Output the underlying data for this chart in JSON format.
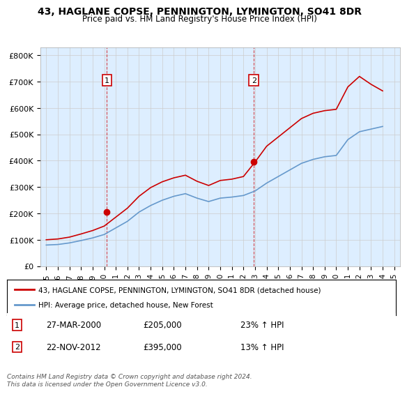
{
  "title": "43, HAGLANE COPSE, PENNINGTON, LYMINGTON, SO41 8DR",
  "subtitle": "Price paid vs. HM Land Registry's House Price Index (HPI)",
  "ylabel": "",
  "bg_color": "#ffffff",
  "chart_bg_color": "#ddeeff",
  "grid_color": "#ffffff",
  "red_color": "#cc0000",
  "blue_color": "#6699cc",
  "sale1_year": 2000.23,
  "sale1_price": 205000,
  "sale1_label": "27-MAR-2000",
  "sale1_pct": "23%",
  "sale2_year": 2012.9,
  "sale2_price": 395000,
  "sale2_label": "22-NOV-2012",
  "sale2_pct": "13%",
  "legend_line1": "43, HAGLANE COPSE, PENNINGTON, LYMINGTON, SO41 8DR (detached house)",
  "legend_line2": "HPI: Average price, detached house, New Forest",
  "footnote": "Contains HM Land Registry data © Crown copyright and database right 2024.\nThis data is licensed under the Open Government Licence v3.0.",
  "xlim_left": 1994.5,
  "xlim_right": 2025.5,
  "ylim_bottom": 0,
  "ylim_top": 830000,
  "yticks": [
    0,
    100000,
    200000,
    300000,
    400000,
    500000,
    600000,
    700000,
    800000
  ],
  "ytick_labels": [
    "£0",
    "£100K",
    "£200K",
    "£300K",
    "£400K",
    "£500K",
    "£600K",
    "£700K",
    "£800K"
  ],
  "xticks": [
    1995,
    1996,
    1997,
    1998,
    1999,
    2000,
    2001,
    2002,
    2003,
    2004,
    2005,
    2006,
    2007,
    2008,
    2009,
    2010,
    2011,
    2012,
    2013,
    2014,
    2015,
    2016,
    2017,
    2018,
    2019,
    2020,
    2021,
    2022,
    2023,
    2024,
    2025
  ],
  "hpi_years": [
    1995,
    1996,
    1997,
    1998,
    1999,
    2000,
    2001,
    2002,
    2003,
    2004,
    2005,
    2006,
    2007,
    2008,
    2009,
    2010,
    2011,
    2012,
    2013,
    2014,
    2015,
    2016,
    2017,
    2018,
    2019,
    2020,
    2021,
    2022,
    2023,
    2024
  ],
  "hpi_values": [
    80000,
    82000,
    88000,
    97000,
    107000,
    120000,
    145000,
    170000,
    205000,
    230000,
    250000,
    265000,
    275000,
    258000,
    245000,
    258000,
    262000,
    268000,
    285000,
    315000,
    340000,
    365000,
    390000,
    405000,
    415000,
    420000,
    480000,
    510000,
    520000,
    530000
  ],
  "red_years": [
    1995,
    1996,
    1997,
    1998,
    1999,
    2000,
    2001,
    2002,
    2003,
    2004,
    2005,
    2006,
    2007,
    2008,
    2009,
    2010,
    2011,
    2012,
    2013,
    2014,
    2015,
    2016,
    2017,
    2018,
    2019,
    2020,
    2021,
    2022,
    2023,
    2024
  ],
  "red_values": [
    100000,
    103000,
    110000,
    122000,
    135000,
    152000,
    186000,
    220000,
    265000,
    298000,
    320000,
    335000,
    345000,
    322000,
    306000,
    325000,
    330000,
    340000,
    395000,
    455000,
    490000,
    525000,
    560000,
    580000,
    590000,
    595000,
    680000,
    720000,
    690000,
    665000
  ]
}
